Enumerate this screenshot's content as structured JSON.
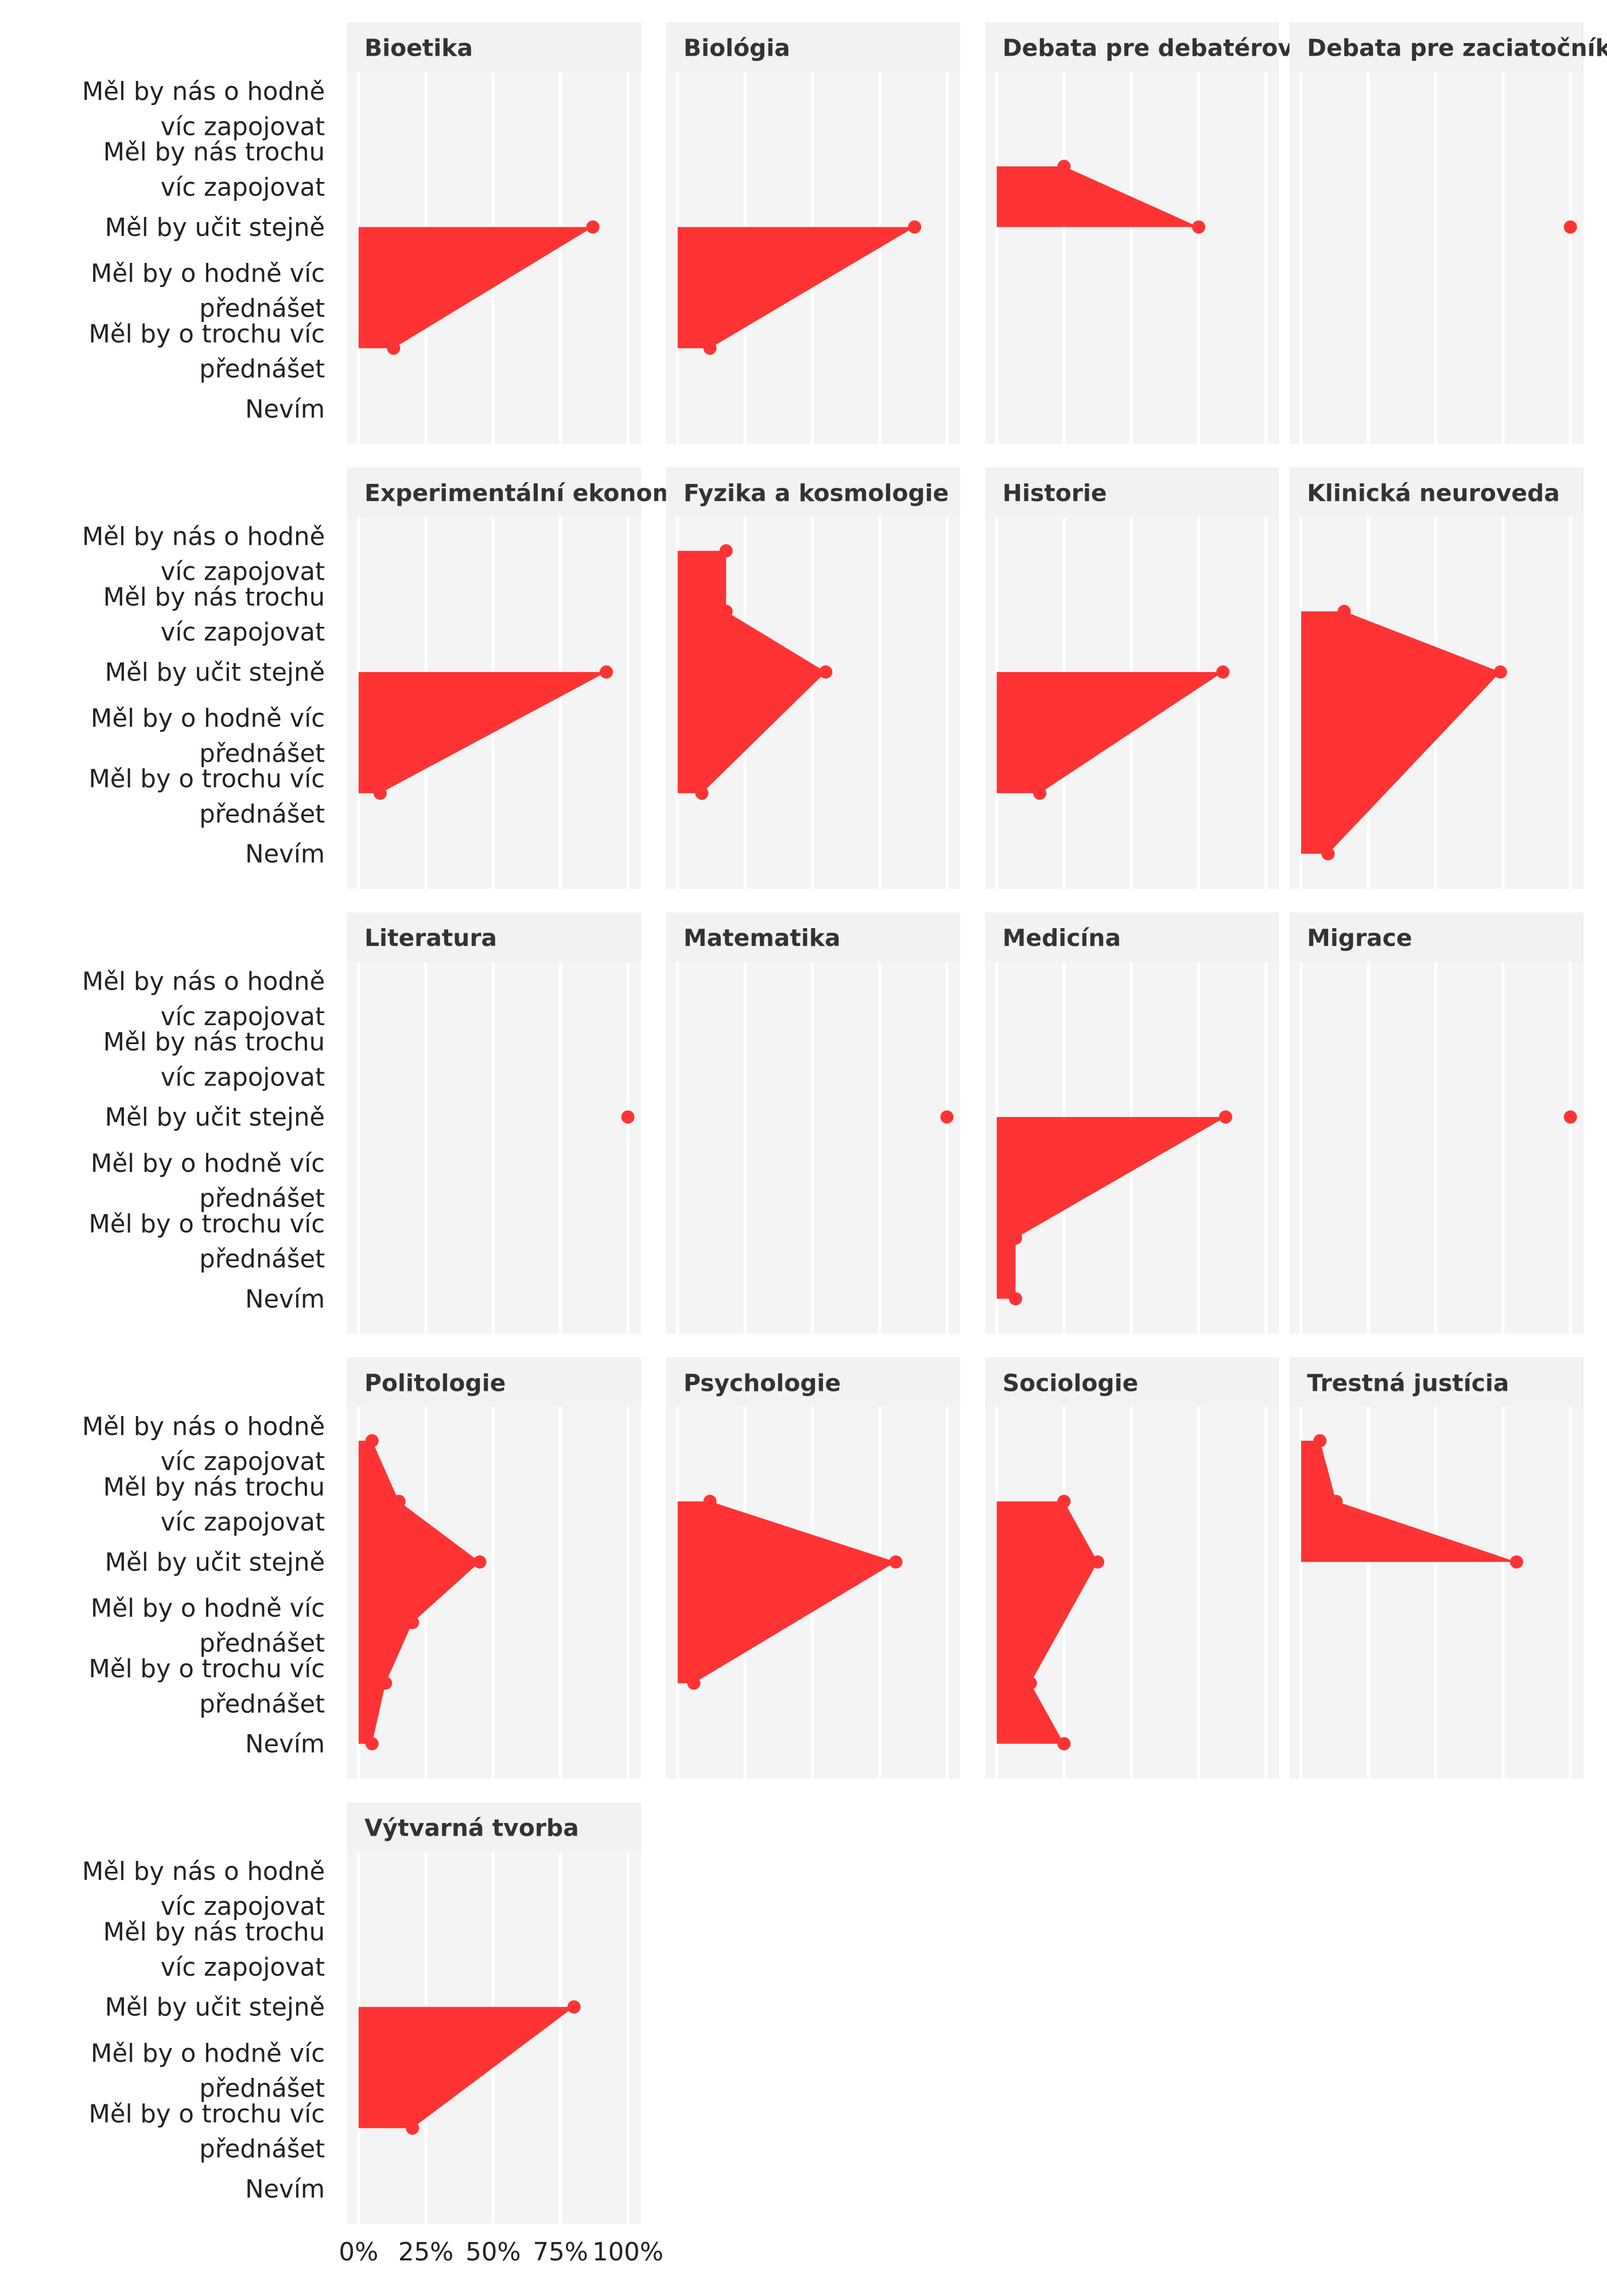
{
  "chart_data": {
    "type": "area",
    "color": "#ff3333",
    "categories": [
      "Měl by nás o hodně\nvíc zapojovat",
      "Měl by nás trochu\nvíc zapojovat",
      "Měl by učit stejně",
      "Měl by o hodně víc\npřednášet",
      "Měl by o trochu víc\npřednášet",
      "Nevím"
    ],
    "xlim": [
      0,
      100
    ],
    "xticks": [
      {
        "value": 0,
        "label": "0%"
      },
      {
        "value": 25,
        "label": "25%"
      },
      {
        "value": 50,
        "label": "50%"
      },
      {
        "value": 75,
        "label": "75%"
      },
      {
        "value": 100,
        "label": "100%"
      }
    ],
    "grid": true,
    "facets": [
      {
        "title": "Bioetika",
        "categories": [
          "Měl by učit stejně",
          "Měl by o trochu víc\npřednášet"
        ],
        "values": [
          87,
          13
        ]
      },
      {
        "title": "Biológia",
        "categories": [
          "Měl by učit stejně",
          "Měl by o trochu víc\npřednášet"
        ],
        "values": [
          88,
          12
        ]
      },
      {
        "title": "Debata pre debatérov",
        "categories": [
          "Měl by nás trochu\nvíc zapojovat",
          "Měl by učit stejně"
        ],
        "values": [
          25,
          75
        ]
      },
      {
        "title": "Debata pre zaciatočníkov",
        "categories": [
          "Měl by učit stejně"
        ],
        "values": [
          100
        ]
      },
      {
        "title": "Experimentální ekonomie",
        "categories": [
          "Měl by učit stejně",
          "Měl by o trochu víc\npřednášet"
        ],
        "values": [
          92,
          8
        ]
      },
      {
        "title": "Fyzika a kosmologie",
        "categories": [
          "Měl by nás o hodně\nvíc zapojovat",
          "Měl by nás trochu\nvíc zapojovat",
          "Měl by učit stejně",
          "Měl by o trochu víc\npřednášet"
        ],
        "values": [
          18,
          18,
          55,
          9
        ]
      },
      {
        "title": "Historie",
        "categories": [
          "Měl by učit stejně",
          "Měl by o trochu víc\npřednášet"
        ],
        "values": [
          84,
          16
        ]
      },
      {
        "title": "Klinická neuroveda",
        "categories": [
          "Měl by nás trochu\nvíc zapojovat",
          "Měl by učit stejně",
          "Nevím"
        ],
        "values": [
          16,
          74,
          10
        ]
      },
      {
        "title": "Literatura",
        "categories": [
          "Měl by učit stejně"
        ],
        "values": [
          100
        ]
      },
      {
        "title": "Matematika",
        "categories": [
          "Měl by učit stejně"
        ],
        "values": [
          100
        ]
      },
      {
        "title": "Medicína",
        "categories": [
          "Měl by učit stejně",
          "Měl by o trochu víc\npřednášet",
          "Nevím"
        ],
        "values": [
          85,
          7,
          7
        ]
      },
      {
        "title": "Migrace",
        "categories": [
          "Měl by učit stejně"
        ],
        "values": [
          100
        ]
      },
      {
        "title": "Politologie",
        "categories": [
          "Měl by nás o hodně\nvíc zapojovat",
          "Měl by nás trochu\nvíc zapojovat",
          "Měl by učit stejně",
          "Měl by o hodně víc\npřednášet",
          "Měl by o trochu víc\npřednášet",
          "Nevím"
        ],
        "values": [
          5,
          15,
          45,
          20,
          10,
          5
        ]
      },
      {
        "title": "Psychologie",
        "categories": [
          "Měl by nás trochu\nvíc zapojovat",
          "Měl by učit stejně",
          "Měl by o trochu víc\npřednášet"
        ],
        "values": [
          12,
          81,
          6
        ]
      },
      {
        "title": "Sociologie",
        "categories": [
          "Měl by nás trochu\nvíc zapojovat",
          "Měl by učit stejně",
          "Měl by o trochu víc\npřednášet",
          "Nevím"
        ],
        "values": [
          25,
          37.5,
          12.5,
          25
        ]
      },
      {
        "title": "Trestná justícia",
        "categories": [
          "Měl by nás o hodně\nvíc zapojovat",
          "Měl by nás trochu\nvíc zapojovat",
          "Měl by učit stejně"
        ],
        "values": [
          7,
          13,
          80
        ]
      },
      {
        "title": "Výtvarná tvorba",
        "categories": [
          "Měl by učit stejně",
          "Měl by o trochu víc\npřednášet"
        ],
        "values": [
          80,
          20
        ]
      }
    ]
  }
}
